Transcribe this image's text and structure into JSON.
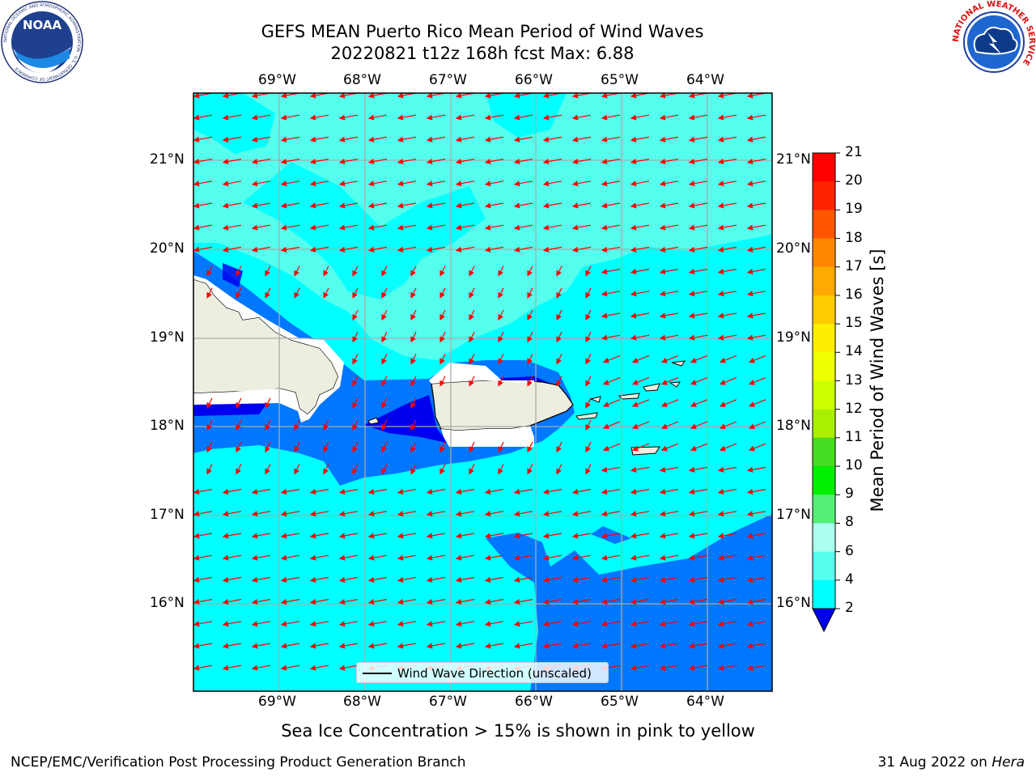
{
  "title_line1": "GEFS MEAN Puerto Rico Mean Period of Wind Waves",
  "title_line2": "20220821 t12z 168h fcst   Max: 6.88",
  "lon_labels": [
    "69°W",
    "68°W",
    "67°W",
    "66°W",
    "65°W",
    "64°W"
  ],
  "lat_labels": [
    "21°N",
    "20°N",
    "19°N",
    "18°N",
    "17°N",
    "16°N"
  ],
  "legend_text": "Wind Wave Direction (unscaled)",
  "colorbar": {
    "label": "Mean Period of Wind Waves [s]",
    "ticks": [
      "21",
      "20",
      "19",
      "18",
      "17",
      "16",
      "15",
      "14",
      "13",
      "12",
      "11",
      "10",
      "9",
      "8",
      "6",
      "4",
      "2"
    ],
    "colors": [
      "#ff0000",
      "#ff2200",
      "#ff5500",
      "#ff8800",
      "#ffaa00",
      "#ffcc00",
      "#ffee00",
      "#eeff00",
      "#ccff00",
      "#aaee00",
      "#44dd22",
      "#00ee00",
      "#55ee77",
      "#aaffee",
      "#55ffee",
      "#00ffff",
      "#0077ff"
    ],
    "under_color": "#0000ee"
  },
  "note": "Sea Ice Concentration > 15% is shown in pink to yellow",
  "footer_left": "NCEP/EMC/Verification Post Processing Product Generation Branch",
  "footer_right_date": "31 Aug 2022 on ",
  "footer_right_host": "Hera",
  "logos": {
    "noaa": "NOAA",
    "noaa_ring": "NATIONAL OCEANIC AND ATMOSPHERIC ADMINISTRATION · U.S. DEPARTMENT OF COMMERCE",
    "nws_ring": "NATIONAL WEATHER SERVICE"
  }
}
